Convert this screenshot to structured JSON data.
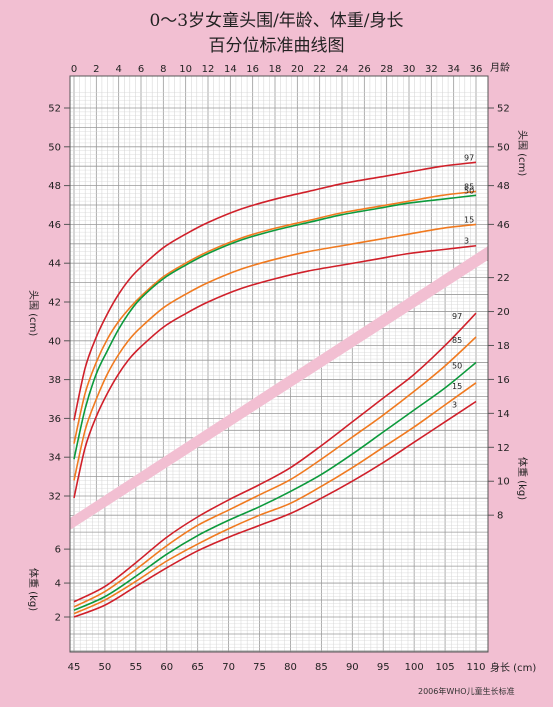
{
  "title": "0～3岁女童头围/年龄、体重/身长",
  "subtitle": "百分位标准曲线图",
  "footnote": "2006年WHO儿童生长标准",
  "chart_data": [
    {
      "type": "line",
      "title": "头围/年龄",
      "xlabel": "月龄",
      "ylabel": "头围 (cm)",
      "x_ticks": [
        0,
        2,
        4,
        6,
        8,
        10,
        12,
        14,
        16,
        18,
        20,
        22,
        24,
        26,
        28,
        30,
        32,
        34,
        36
      ],
      "y_ticks_left": [
        32,
        34,
        36,
        38,
        40,
        42,
        44,
        46,
        48,
        50,
        52
      ],
      "y_ticks_right": [
        46,
        48,
        50,
        52
      ],
      "xlim": [
        0,
        36
      ],
      "ylim": [
        31,
        53
      ],
      "x": [
        0,
        1,
        2,
        3,
        4,
        5,
        6,
        8,
        10,
        12,
        15,
        18,
        21,
        24,
        27,
        30,
        33,
        36
      ],
      "series": [
        {
          "name": "97",
          "color": "#d0202a",
          "values": [
            35.9,
            38.6,
            40.2,
            41.4,
            42.4,
            43.2,
            43.8,
            44.8,
            45.5,
            46.1,
            46.8,
            47.3,
            47.7,
            48.1,
            48.4,
            48.7,
            49.0,
            49.2
          ]
        },
        {
          "name": "85",
          "color": "#f07a20",
          "values": [
            34.7,
            37.3,
            38.9,
            40.1,
            41.0,
            41.7,
            42.3,
            43.3,
            44.0,
            44.6,
            45.3,
            45.8,
            46.2,
            46.6,
            46.9,
            47.2,
            47.5,
            47.7
          ]
        },
        {
          "name": "50",
          "color": "#0c9a3c",
          "values": [
            33.9,
            36.5,
            38.3,
            39.5,
            40.6,
            41.5,
            42.2,
            43.2,
            43.9,
            44.5,
            45.2,
            45.7,
            46.1,
            46.5,
            46.8,
            47.1,
            47.3,
            47.5
          ]
        },
        {
          "name": "15",
          "color": "#f07a20",
          "values": [
            32.8,
            35.4,
            37.0,
            38.3,
            39.3,
            40.1,
            40.7,
            41.7,
            42.4,
            43.0,
            43.7,
            44.2,
            44.6,
            44.9,
            45.2,
            45.5,
            45.8,
            46.0
          ]
        },
        {
          "name": "3",
          "color": "#d0202a",
          "values": [
            31.9,
            34.5,
            36.1,
            37.3,
            38.3,
            39.1,
            39.7,
            40.7,
            41.4,
            42.0,
            42.7,
            43.2,
            43.6,
            43.9,
            44.2,
            44.5,
            44.7,
            44.9
          ]
        }
      ]
    },
    {
      "type": "line",
      "title": "体重/身长",
      "xlabel": "身长 (cm)",
      "ylabel": "体重 (kg)",
      "x_ticks": [
        45,
        50,
        55,
        60,
        65,
        70,
        75,
        80,
        85,
        90,
        95,
        100,
        105,
        110
      ],
      "y_ticks_right": [
        8,
        10,
        12,
        14,
        16,
        18,
        20,
        22
      ],
      "y_ticks_left": [
        2,
        4,
        6
      ],
      "xlim": [
        45,
        110
      ],
      "ylim": [
        0,
        22
      ],
      "x": [
        45,
        50,
        55,
        60,
        65,
        70,
        75,
        80,
        85,
        90,
        95,
        100,
        105,
        110
      ],
      "series": [
        {
          "name": "97",
          "color": "#d0202a",
          "values": [
            2.9,
            3.8,
            5.2,
            6.7,
            7.9,
            8.9,
            9.8,
            10.8,
            12.1,
            13.5,
            14.9,
            16.3,
            18.0,
            19.9
          ]
        },
        {
          "name": "85",
          "color": "#f07a20",
          "values": [
            2.6,
            3.5,
            4.8,
            6.2,
            7.4,
            8.3,
            9.2,
            10.1,
            11.3,
            12.6,
            13.9,
            15.3,
            16.8,
            18.5
          ]
        },
        {
          "name": "50",
          "color": "#0c9a3c",
          "values": [
            2.4,
            3.2,
            4.4,
            5.7,
            6.8,
            7.7,
            8.5,
            9.4,
            10.4,
            11.6,
            12.9,
            14.2,
            15.5,
            17.0
          ]
        },
        {
          "name": "15",
          "color": "#f07a20",
          "values": [
            2.2,
            3.0,
            4.1,
            5.3,
            6.3,
            7.2,
            8.0,
            8.7,
            9.7,
            10.8,
            12.0,
            13.2,
            14.5,
            15.8
          ]
        },
        {
          "name": "3",
          "color": "#d0202a",
          "values": [
            2.0,
            2.7,
            3.8,
            4.9,
            5.9,
            6.7,
            7.4,
            8.1,
            9.0,
            10.0,
            11.1,
            12.3,
            13.5,
            14.7
          ]
        }
      ]
    }
  ],
  "labels": {
    "hc_left": "头围 (cm)",
    "hc_right": "头围 (cm)",
    "wt_left": "体重 (kg)",
    "wt_right": "体重 (kg)",
    "top_unit": "月龄",
    "bottom_unit": "身长 (cm)"
  }
}
